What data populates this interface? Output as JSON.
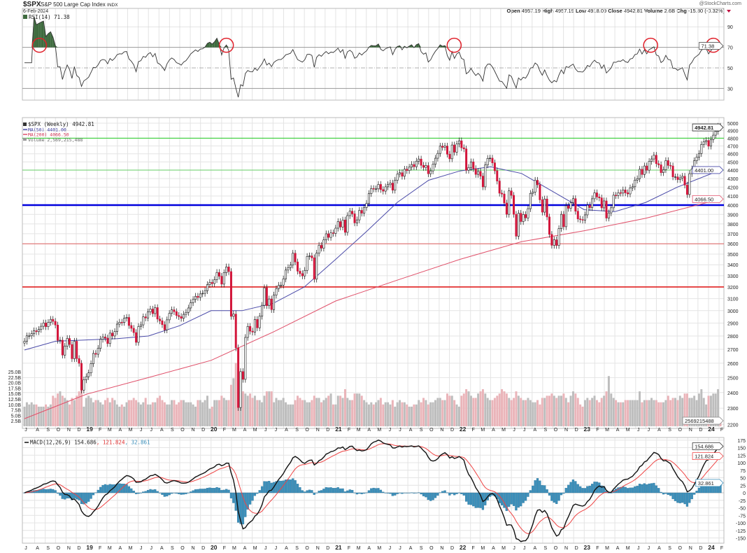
{
  "header": {
    "symbol": "$SPX",
    "name": "S&P 500 Large Cap Index",
    "exchange": "INDX",
    "date": "6-Feb-2024",
    "copyright": "@StockCharts.com",
    "open_label": "Open",
    "open": "4957.19",
    "high_label": "High",
    "high": "4957.19",
    "low_label": "Low",
    "low": "4918.09",
    "close_label": "Close",
    "close": "4942.81",
    "volume_label": "Volume",
    "volume": "2.6B",
    "chg_label": "Chg",
    "chg": "-15.80 (-0.32%)",
    "chg_icon": "triangle-down-icon"
  },
  "legends": {
    "rsi": "RSI(14) 71.38",
    "price": "$SPX (Weekly) 4942.81",
    "ma50": "MA(50) 4401.00",
    "ma200": "MA(200) 4066.50",
    "volume": "Volume 2,569,215,488",
    "macd_main": "MACD(12,26,9) 154.686",
    "macd_signal": ", 121.824",
    "macd_hist": ", 32.861"
  },
  "tags": {
    "rsi": "71.38",
    "price": "4942.81",
    "ma50": "4401.00",
    "ma200": "4066.50",
    "volume": "2569215488",
    "macd": "154.686",
    "signal": "121.824",
    "hist": "32.861"
  },
  "colors": {
    "up_candle": "#ffffff",
    "down_candle": "#d2153a",
    "up_volume": "#bdbdbd",
    "down_volume": "#eab4b9",
    "ma50": "#4a4aa8",
    "ma200": "#e0506a",
    "rsi_line": "#333333",
    "rsi_fill": "#3f6b3f",
    "macd_line": "#111111",
    "signal_line": "#ee4444",
    "histogram": "#3b8fba",
    "annotation_circle": "#e0202a",
    "hline_green": "#22cc22",
    "hline_blue": "#0000dd",
    "hline_red": "#e02020"
  },
  "chart_data": {
    "type": "candlestick",
    "interval": "weekly",
    "first_week": "2018-07-02",
    "last_week": "2024-02-05",
    "price_scale": "log",
    "price_ylim": [
      2200,
      5000
    ],
    "price_ticks": [
      2200,
      2300,
      2400,
      2500,
      2600,
      2700,
      2800,
      2900,
      3000,
      3100,
      3200,
      3300,
      3400,
      3500,
      3600,
      3700,
      3800,
      3900,
      4000,
      4100,
      4200,
      4300,
      4400,
      4500,
      4600,
      4700,
      4800,
      4900,
      5000
    ],
    "volume_ticks": [
      "2.5B",
      "5.0B",
      "7.5B",
      "10.0B",
      "12.5B",
      "15.0B",
      "17.5B",
      "20.0B",
      "22.5B",
      "25.0B"
    ],
    "rsi_ticks": [
      30,
      50,
      70,
      90
    ],
    "macd_ticks": [
      175,
      150,
      125,
      100,
      75,
      50,
      25,
      0,
      -25,
      -50,
      -75,
      -100,
      -125,
      -150
    ],
    "month_letters": [
      "J",
      "F",
      "M",
      "A",
      "M",
      "J",
      "J",
      "A",
      "S",
      "O",
      "N",
      "D"
    ],
    "year_labels": {
      "2019": "19",
      "2020": "20",
      "2021": "21",
      "2022": "22",
      "2023": "23",
      "2024": "24"
    },
    "horizontal_lines": [
      {
        "price": 4800,
        "color": "#22cc22",
        "weight": "thin"
      },
      {
        "price": 4400,
        "color": "#66cc66",
        "weight": "thin"
      },
      {
        "price": 4000,
        "color": "#0000dd",
        "weight": "thick"
      },
      {
        "price": 3600,
        "color": "#e06060",
        "weight": "thin"
      },
      {
        "price": 3200,
        "color": "#e02020",
        "weight": "medium"
      }
    ],
    "rsi_annotations": [
      "2018-08",
      "2020-02",
      "2021-12",
      "2023-07",
      "2024-01"
    ],
    "closes": [
      2760,
      2801,
      2801,
      2818,
      2840,
      2833,
      2850,
      2875,
      2901,
      2872,
      2905,
      2930,
      2914,
      2885,
      2767,
      2768,
      2658,
      2723,
      2781,
      2736,
      2632,
      2760,
      2633,
      2599,
      2416,
      2485,
      2506,
      2532,
      2596,
      2670,
      2664,
      2707,
      2775,
      2792,
      2784,
      2743,
      2822,
      2800,
      2834,
      2892,
      2907,
      2905,
      2939,
      2945,
      2881,
      2859,
      2826,
      2752,
      2873,
      2886,
      2950,
      2941,
      2990,
      3013,
      2976,
      3025,
      2932,
      2918,
      2888,
      2847,
      2926,
      2978,
      3007,
      2992,
      2961,
      2952,
      2938,
      2970,
      2986,
      3022,
      3066,
      3093,
      3120,
      3110,
      3140,
      3145,
      3168,
      3221,
      3240,
      3230,
      3265,
      3329,
      3295,
      3225,
      3327,
      3380,
      3337,
      2954,
      2972,
      2711,
      2304,
      2541,
      2488,
      2789,
      2874,
      2837,
      2830,
      2929,
      2863,
      2955,
      3044,
      3193,
      3041,
      3097,
      3009,
      3130,
      3185,
      3215,
      3216,
      3271,
      3351,
      3373,
      3397,
      3508,
      3426,
      3341,
      3319,
      3298,
      3348,
      3477,
      3483,
      3465,
      3269,
      3509,
      3585,
      3557,
      3638,
      3699,
      3663,
      3709,
      3703,
      3756,
      3824,
      3768,
      3841,
      3714,
      3887,
      3934,
      3906,
      3811,
      3842,
      3943,
      3913,
      3974,
      4019,
      4128,
      4185,
      4180,
      4181,
      4232,
      4173,
      4155,
      4204,
      4229,
      4247,
      4166,
      4280,
      4352,
      4369,
      4327,
      4411,
      4395,
      4436,
      4468,
      4441,
      4509,
      4535,
      4458,
      4433,
      4455,
      4357,
      4391,
      4471,
      4545,
      4605,
      4697,
      4682,
      4698,
      4595,
      4538,
      4712,
      4620,
      4725,
      4766,
      4677,
      4662,
      4398,
      4432,
      4500,
      4418,
      4349,
      4385,
      4329,
      4204,
      4463,
      4543,
      4546,
      4488,
      4392,
      4271,
      4132,
      4123,
      4023,
      3901,
      4158,
      4108,
      3901,
      3675,
      3912,
      3825,
      3899,
      3863,
      3961,
      4130,
      4145,
      4280,
      4228,
      4058,
      3924,
      4067,
      3873,
      3693,
      3585,
      3639,
      3583,
      3752,
      3901,
      3771,
      3993,
      3965,
      4026,
      4071,
      3934,
      3852,
      3845,
      3839,
      3895,
      3999,
      3972,
      4070,
      4136,
      4090,
      4079,
      3970,
      4046,
      3861,
      3916,
      3971,
      4109,
      4105,
      4137,
      4133,
      4169,
      4136,
      4124,
      4192,
      4205,
      4282,
      4298,
      4410,
      4348,
      4450,
      4399,
      4505,
      4536,
      4582,
      4478,
      4464,
      4370,
      4405,
      4516,
      4457,
      4450,
      4320,
      4320,
      4288,
      4308,
      4327,
      4224,
      4117,
      4358,
      4415,
      4514,
      4559,
      4604,
      4719,
      4754,
      4770,
      4697,
      4783,
      4840,
      4891,
      4958,
      4942.81
    ],
    "volumes_billions": [
      9,
      11,
      10,
      11,
      10,
      10,
      9,
      9,
      9,
      10,
      9,
      10,
      14,
      13,
      15,
      16,
      14,
      13,
      12,
      10,
      13,
      12,
      14,
      16,
      19,
      9,
      13,
      14,
      13,
      11,
      12,
      12,
      11,
      10,
      12,
      13,
      11,
      13,
      12,
      10,
      9,
      10,
      9,
      11,
      12,
      12,
      13,
      12,
      11,
      10,
      11,
      13,
      10,
      10,
      11,
      11,
      13,
      14,
      12,
      11,
      10,
      10,
      12,
      12,
      10,
      11,
      12,
      12,
      11,
      11,
      11,
      10,
      9,
      12,
      12,
      11,
      12,
      14,
      8,
      9,
      12,
      12,
      12,
      14,
      13,
      12,
      12,
      19,
      22,
      29,
      27,
      21,
      16,
      15,
      14,
      15,
      13,
      14,
      12,
      12,
      11,
      14,
      16,
      16,
      16,
      11,
      13,
      12,
      12,
      13,
      11,
      10,
      10,
      10,
      12,
      14,
      13,
      12,
      12,
      11,
      11,
      12,
      14,
      13,
      13,
      11,
      12,
      13,
      14,
      15,
      10,
      10,
      14,
      14,
      13,
      17,
      13,
      12,
      12,
      15,
      15,
      15,
      14,
      12,
      11,
      10,
      11,
      10,
      11,
      12,
      13,
      10,
      11,
      11,
      10,
      12,
      9,
      11,
      12,
      11,
      11,
      10,
      9,
      9,
      10,
      10,
      12,
      11,
      13,
      12,
      10,
      11,
      11,
      12,
      13,
      13,
      12,
      12,
      15,
      14,
      14,
      12,
      10,
      9,
      14,
      15,
      17,
      16,
      14,
      13,
      13,
      15,
      16,
      17,
      15,
      13,
      12,
      12,
      13,
      14,
      15,
      17,
      16,
      15,
      13,
      12,
      13,
      16,
      14,
      13,
      12,
      12,
      13,
      12,
      11,
      11,
      12,
      10,
      13,
      13,
      14,
      14,
      15,
      14,
      13,
      14,
      14,
      15,
      13,
      11,
      14,
      16,
      15,
      13,
      10,
      9,
      12,
      13,
      12,
      13,
      14,
      12,
      11,
      13,
      14,
      16,
      23,
      15,
      13,
      12,
      11,
      11,
      11,
      12,
      12,
      12,
      12,
      12,
      12,
      16,
      11,
      12,
      12,
      12,
      13,
      12,
      12,
      11,
      11,
      11,
      12,
      14,
      12,
      13,
      13,
      12,
      14,
      13,
      15,
      15,
      13,
      13,
      14,
      12,
      15,
      17,
      13,
      10,
      14,
      14,
      15,
      15,
      17,
      2.6
    ],
    "ma50": [
      [
        "2018-07-02",
        2695
      ],
      [
        "2018-10-01",
        2760
      ],
      [
        "2019-01-01",
        2770
      ],
      [
        "2019-04-01",
        2780
      ],
      [
        "2019-07-01",
        2800
      ],
      [
        "2019-10-01",
        2880
      ],
      [
        "2020-01-01",
        3000
      ],
      [
        "2020-04-01",
        3000
      ],
      [
        "2020-07-01",
        3060
      ],
      [
        "2020-10-01",
        3200
      ],
      [
        "2021-01-01",
        3450
      ],
      [
        "2021-04-01",
        3720
      ],
      [
        "2021-07-01",
        4030
      ],
      [
        "2021-10-01",
        4280
      ],
      [
        "2022-01-01",
        4390
      ],
      [
        "2022-04-01",
        4440
      ],
      [
        "2022-07-01",
        4360
      ],
      [
        "2022-10-01",
        4150
      ],
      [
        "2023-01-01",
        3950
      ],
      [
        "2023-04-01",
        3930
      ],
      [
        "2023-07-01",
        4030
      ],
      [
        "2023-10-01",
        4200
      ],
      [
        "2024-02-05",
        4401
      ]
    ],
    "ma200": [
      [
        "2018-07-02",
        2235
      ],
      [
        "2019-01-01",
        2390
      ],
      [
        "2019-07-01",
        2500
      ],
      [
        "2020-01-01",
        2620
      ],
      [
        "2020-07-01",
        2830
      ],
      [
        "2021-01-01",
        3080
      ],
      [
        "2021-07-01",
        3260
      ],
      [
        "2022-01-01",
        3450
      ],
      [
        "2022-07-01",
        3620
      ],
      [
        "2023-01-01",
        3730
      ],
      [
        "2023-07-01",
        3860
      ],
      [
        "2024-02-05",
        4066.5
      ]
    ],
    "rsi_latest": 71.38,
    "macd_latest": {
      "macd": 154.686,
      "signal": 121.824,
      "histogram": 32.861
    }
  }
}
